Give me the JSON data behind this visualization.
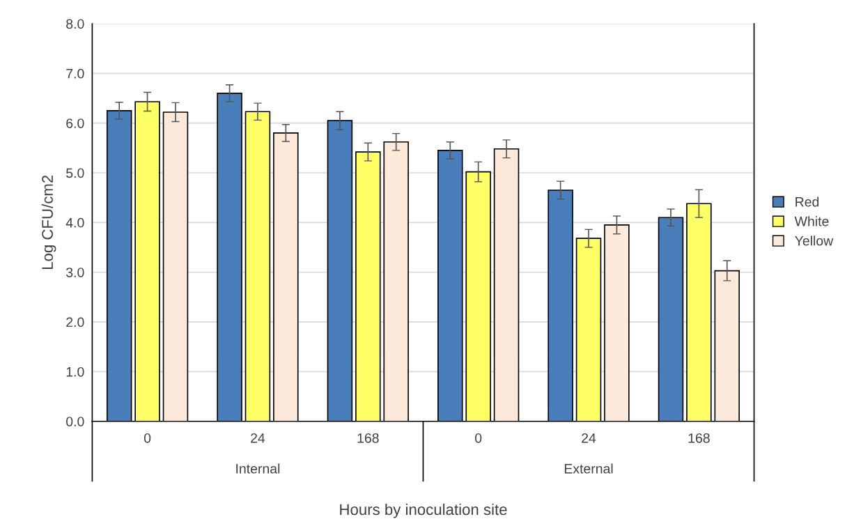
{
  "chart_data": {
    "type": "bar",
    "xlabel": "Hours by inoculation site",
    "ylabel": "Log CFU/cm2",
    "categories": [
      "0",
      "24",
      "168",
      "0",
      "24",
      "168"
    ],
    "annotations": [
      "Internal",
      "External"
    ],
    "series": [
      {
        "name": "Red",
        "color": "#4a7ebb",
        "values": [
          6.25,
          6.6,
          6.05,
          5.45,
          4.65,
          4.1
        ],
        "errors": [
          0.17,
          0.17,
          0.18,
          0.17,
          0.18,
          0.17
        ]
      },
      {
        "name": "White",
        "color": "#ffff66",
        "values": [
          6.43,
          6.23,
          5.42,
          5.02,
          3.68,
          4.38
        ],
        "errors": [
          0.19,
          0.17,
          0.18,
          0.2,
          0.18,
          0.28
        ]
      },
      {
        "name": "Yellow",
        "color": "#fde9d9",
        "values": [
          6.22,
          5.8,
          5.62,
          5.48,
          3.95,
          3.03
        ],
        "errors": [
          0.19,
          0.17,
          0.17,
          0.18,
          0.18,
          0.2
        ]
      }
    ],
    "ylim": [
      0,
      8
    ],
    "yticks": [
      {
        "value": 0,
        "label": "0.0"
      },
      {
        "value": 1,
        "label": "1.0"
      },
      {
        "value": 2,
        "label": "2.0"
      },
      {
        "value": 3,
        "label": "3.0"
      },
      {
        "value": 4,
        "label": "4.0"
      },
      {
        "value": 5,
        "label": "5.0"
      },
      {
        "value": 6,
        "label": "6.0"
      },
      {
        "value": 7,
        "label": "7.0"
      },
      {
        "value": 8,
        "label": "8.0"
      }
    ],
    "grid": "y",
    "legend": "right"
  }
}
